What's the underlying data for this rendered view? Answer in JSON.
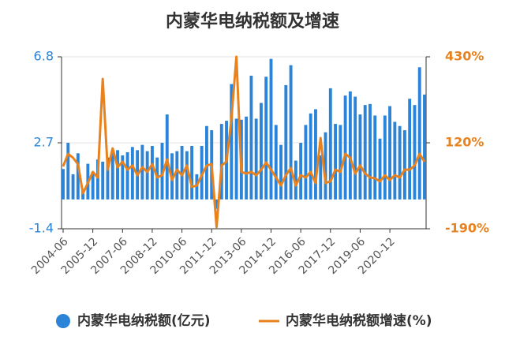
{
  "chart_data": {
    "type": "bar",
    "title": "内蒙华电纳税额及增速",
    "categories": [
      "2004-06",
      null,
      null,
      null,
      null,
      null,
      "2005-12",
      null,
      null,
      null,
      null,
      null,
      "2007-06",
      null,
      null,
      null,
      null,
      null,
      "2008-12",
      null,
      null,
      null,
      null,
      null,
      "2010-06",
      null,
      null,
      null,
      null,
      null,
      "2011-12",
      null,
      null,
      null,
      null,
      null,
      "2013-06",
      null,
      null,
      null,
      null,
      null,
      "2014-12",
      null,
      null,
      null,
      null,
      null,
      "2016-06",
      null,
      null,
      null,
      null,
      null,
      "2017-12",
      null,
      null,
      null,
      null,
      null,
      "2019-06",
      null,
      null,
      null,
      null,
      null,
      "2020-12",
      null,
      null,
      null,
      null,
      null,
      null,
      null
    ],
    "series": [
      {
        "name": "内蒙华电纳税额(亿元)",
        "type": "bar",
        "color": "#2b84d8",
        "values": [
          1.45,
          2.7,
          1.2,
          2.2,
          0.5,
          1.7,
          1.3,
          1.9,
          1.8,
          2.0,
          2.25,
          2.35,
          2.1,
          2.25,
          2.5,
          2.35,
          2.6,
          2.3,
          2.55,
          2.0,
          2.7,
          4.05,
          2.2,
          2.3,
          2.55,
          2.3,
          2.55,
          1.2,
          2.55,
          3.5,
          3.3,
          -0.45,
          3.6,
          3.75,
          5.5,
          3.85,
          3.8,
          3.95,
          5.9,
          3.85,
          4.6,
          5.85,
          6.7,
          3.55,
          2.6,
          5.45,
          6.4,
          1.85,
          2.7,
          3.55,
          4.1,
          4.3,
          2.1,
          3.2,
          5.3,
          3.6,
          3.55,
          4.95,
          5.15,
          4.9,
          4.05,
          4.5,
          4.55,
          4.0,
          2.9,
          4.0,
          4.45,
          3.7,
          3.5,
          3.3,
          4.8,
          4.5,
          6.3,
          5.0
        ]
      },
      {
        "name": "内蒙华电纳税额增速(%)",
        "type": "line",
        "axis": "y2",
        "color": "#e8821e",
        "values": [
          35,
          80,
          66,
          43,
          -62,
          -25,
          15,
          -5,
          350,
          23,
          100,
          32,
          52,
          23,
          38,
          3,
          32,
          15,
          43,
          -5,
          3,
          60,
          -14,
          23,
          3,
          38,
          -39,
          -34,
          3,
          38,
          43,
          -184,
          38,
          52,
          208,
          430,
          15,
          9,
          15,
          3,
          23,
          49,
          23,
          -5,
          -34,
          3,
          29,
          -34,
          3,
          -5,
          15,
          -25,
          137,
          -25,
          -19,
          23,
          15,
          80,
          66,
          9,
          38,
          9,
          -5,
          -8,
          -19,
          3,
          -14,
          3,
          -5,
          23,
          23,
          38,
          80,
          52
        ]
      }
    ],
    "ylim": [
      -1.4,
      6.8
    ],
    "yticks": [
      -1.4,
      2.7,
      6.8
    ],
    "y2lim": [
      -190,
      430
    ],
    "y2ticks": [
      {
        "value": -190,
        "label": "-190%"
      },
      {
        "value": 120,
        "label": "120%"
      },
      {
        "value": 430,
        "label": "430%"
      }
    ],
    "grid": true,
    "legend": "bottom"
  }
}
